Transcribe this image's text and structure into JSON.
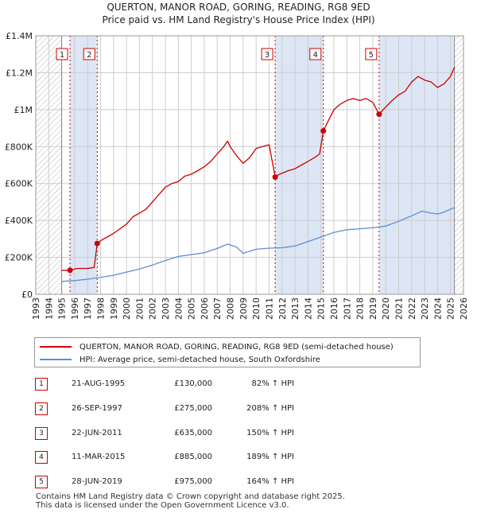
{
  "title_line1": "QUERTON, MANOR ROAD, GORING, READING, RG8 9ED",
  "title_line2": "Price paid vs. HM Land Registry's House Price Index (HPI)",
  "colors": {
    "property": "#cc0000",
    "hpi": "#5b8fd0",
    "grid": "#cccccc",
    "highlight": "#dde6f5",
    "hatch": "#aaaaaa"
  },
  "chart_data": {
    "type": "line",
    "title": "Price paid vs. HM Land Registry's House Price Index (HPI)",
    "xlabel": "",
    "ylabel": "",
    "xlim": [
      1993,
      2026
    ],
    "ylim": [
      0,
      1400000
    ],
    "x_ticks": [
      1993,
      1994,
      1995,
      1996,
      1997,
      1998,
      1999,
      2000,
      2001,
      2002,
      2003,
      2004,
      2005,
      2006,
      2007,
      2008,
      2009,
      2010,
      2011,
      2012,
      2013,
      2014,
      2015,
      2016,
      2017,
      2018,
      2019,
      2020,
      2021,
      2022,
      2023,
      2024,
      2025,
      2026
    ],
    "y_ticks": [
      {
        "value": 0,
        "label": "£0"
      },
      {
        "value": 200000,
        "label": "£200K"
      },
      {
        "value": 400000,
        "label": "£400K"
      },
      {
        "value": 600000,
        "label": "£600K"
      },
      {
        "value": 800000,
        "label": "£800K"
      },
      {
        "value": 1000000,
        "label": "£1M"
      },
      {
        "value": 1200000,
        "label": "£1.2M"
      },
      {
        "value": 1400000,
        "label": "£1.4M"
      }
    ],
    "hatched_regions": [
      [
        1993,
        1995.0
      ],
      [
        2025.3,
        2026
      ]
    ],
    "highlight_bands": [
      [
        1995.64,
        1997.74
      ],
      [
        2011.47,
        2015.19
      ],
      [
        2019.49,
        2025.3
      ]
    ],
    "series": [
      {
        "name": "QUERTON, MANOR ROAD, GORING, READING, RG8 9ED (semi-detached house)",
        "color": "#cc0000",
        "x": [
          1995.0,
          1995.64,
          1996.2,
          1997.0,
          1997.5,
          1997.74,
          1998.0,
          1998.5,
          1999.0,
          1999.5,
          2000.0,
          2000.5,
          2001.0,
          2001.5,
          2002.0,
          2002.5,
          2003.0,
          2003.5,
          2004.0,
          2004.5,
          2005.0,
          2005.5,
          2006.0,
          2006.5,
          2007.0,
          2007.5,
          2007.8,
          2008.0,
          2008.5,
          2009.0,
          2009.5,
          2010.0,
          2010.5,
          2011.0,
          2011.3,
          2011.47,
          2011.8,
          2012.5,
          2013.0,
          2013.5,
          2014.0,
          2014.5,
          2014.9,
          2015.19,
          2015.5,
          2016.0,
          2016.5,
          2017.0,
          2017.5,
          2018.0,
          2018.5,
          2019.0,
          2019.3,
          2019.49,
          2019.8,
          2020.5,
          2021.0,
          2021.5,
          2022.0,
          2022.5,
          2023.0,
          2023.5,
          2024.0,
          2024.5,
          2025.0,
          2025.3
        ],
        "y": [
          130000,
          130000,
          140000,
          140000,
          145000,
          275000,
          290000,
          310000,
          330000,
          355000,
          380000,
          420000,
          440000,
          460000,
          500000,
          540000,
          580000,
          600000,
          610000,
          640000,
          650000,
          670000,
          690000,
          720000,
          760000,
          800000,
          830000,
          800000,
          750000,
          710000,
          740000,
          790000,
          800000,
          810000,
          700000,
          635000,
          650000,
          670000,
          680000,
          700000,
          720000,
          740000,
          760000,
          885000,
          930000,
          1000000,
          1030000,
          1050000,
          1060000,
          1050000,
          1060000,
          1040000,
          1000000,
          975000,
          1000000,
          1050000,
          1080000,
          1100000,
          1150000,
          1180000,
          1160000,
          1150000,
          1120000,
          1140000,
          1180000,
          1230000
        ]
      },
      {
        "name": "HPI: Average price, semi-detached house, South Oxfordshire",
        "color": "#5b8fd0",
        "x": [
          1995.0,
          1996.0,
          1997.0,
          1998.0,
          1999.0,
          2000.0,
          2001.0,
          2002.0,
          2003.0,
          2004.0,
          2005.0,
          2006.0,
          2007.0,
          2007.8,
          2008.5,
          2009.0,
          2010.0,
          2011.0,
          2012.0,
          2013.0,
          2014.0,
          2015.0,
          2016.0,
          2017.0,
          2018.0,
          2019.0,
          2020.0,
          2021.0,
          2022.0,
          2022.8,
          2023.5,
          2024.0,
          2024.5,
          2025.3
        ],
        "y": [
          70000,
          74000,
          82000,
          92000,
          103000,
          120000,
          137000,
          158000,
          183000,
          205000,
          215000,
          225000,
          248000,
          272000,
          255000,
          222000,
          244000,
          250000,
          252000,
          262000,
          285000,
          310000,
          335000,
          350000,
          355000,
          360000,
          370000,
          395000,
          425000,
          450000,
          440000,
          435000,
          445000,
          470000
        ]
      }
    ],
    "sales": [
      {
        "n": "1",
        "x": 1995.64,
        "y": 130000
      },
      {
        "n": "2",
        "x": 1997.74,
        "y": 275000
      },
      {
        "n": "3",
        "x": 2011.47,
        "y": 635000
      },
      {
        "n": "4",
        "x": 2015.19,
        "y": 885000
      },
      {
        "n": "5",
        "x": 2019.49,
        "y": 975000
      }
    ]
  },
  "legend": {
    "property_label": "QUERTON, MANOR ROAD, GORING, READING, RG8 9ED (semi-detached house)",
    "hpi_label": "HPI: Average price, semi-detached house, South Oxfordshire"
  },
  "transactions": [
    {
      "n": "1",
      "date": "21-AUG-1995",
      "price": "£130,000",
      "hpi": "82% ↑ HPI"
    },
    {
      "n": "2",
      "date": "26-SEP-1997",
      "price": "£275,000",
      "hpi": "208% ↑ HPI"
    },
    {
      "n": "3",
      "date": "22-JUN-2011",
      "price": "£635,000",
      "hpi": "150% ↑ HPI"
    },
    {
      "n": "4",
      "date": "11-MAR-2015",
      "price": "£885,000",
      "hpi": "189% ↑ HPI"
    },
    {
      "n": "5",
      "date": "28-JUN-2019",
      "price": "£975,000",
      "hpi": "164% ↑ HPI"
    }
  ],
  "footer_line1": "Contains HM Land Registry data © Crown copyright and database right 2025.",
  "footer_line2": "This data is licensed under the Open Government Licence v3.0."
}
